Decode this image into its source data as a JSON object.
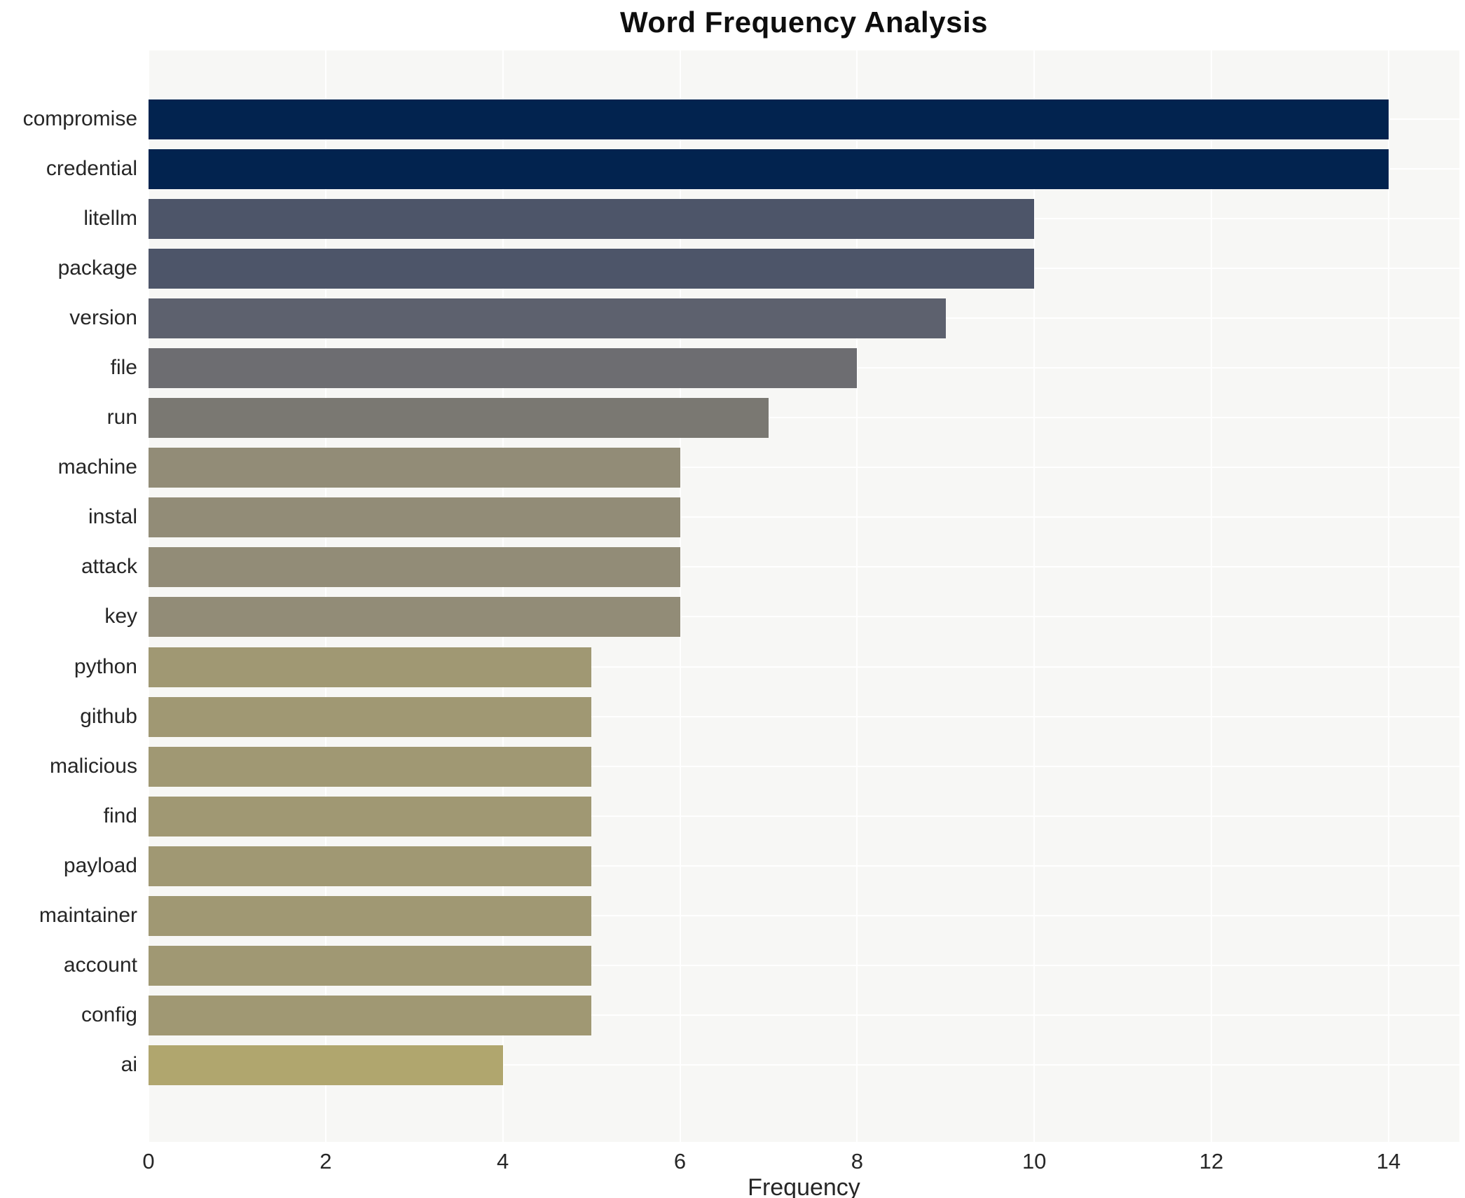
{
  "chart_data": {
    "type": "bar",
    "orientation": "horizontal",
    "title": "Word Frequency Analysis",
    "xlabel": "Frequency",
    "categories": [
      "compromise",
      "credential",
      "litellm",
      "package",
      "version",
      "file",
      "run",
      "machine",
      "instal",
      "attack",
      "key",
      "python",
      "github",
      "malicious",
      "find",
      "payload",
      "maintainer",
      "account",
      "config",
      "ai"
    ],
    "values": [
      14,
      14,
      10,
      10,
      9,
      8,
      7,
      6,
      6,
      6,
      6,
      5,
      5,
      5,
      5,
      5,
      5,
      5,
      5,
      4
    ],
    "colors": [
      "#02234f",
      "#02234f",
      "#4d5569",
      "#4d5569",
      "#5d616e",
      "#6d6d71",
      "#7a7872",
      "#928c77",
      "#928c77",
      "#928c77",
      "#928c77",
      "#a09873",
      "#a09873",
      "#a09873",
      "#a09873",
      "#a09873",
      "#a09873",
      "#a09873",
      "#a09873",
      "#b0a66e"
    ],
    "xticks": [
      0,
      2,
      4,
      6,
      8,
      10,
      12,
      14
    ],
    "xlim": [
      0,
      14.8
    ],
    "grid": true,
    "legend": "none",
    "panel_bg": "#f7f7f5",
    "grid_color": "#ffffff"
  }
}
